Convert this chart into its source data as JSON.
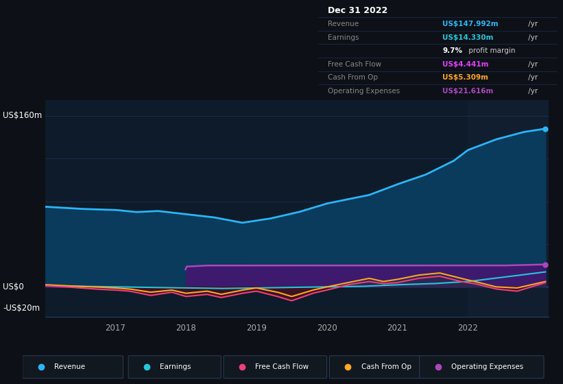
{
  "bg_color": "#0d1117",
  "plot_bg_color": "#0d1b2a",
  "highlight_bg_color": "#111e30",
  "grid_color": "#1e3050",
  "title": "Dec 31 2022",
  "table_rows": [
    {
      "label": "",
      "value": "Dec 31 2022",
      "value_color": "#ffffff",
      "is_header": true
    },
    {
      "label": "Revenue",
      "value": "US$147.992m",
      "unit": "/yr",
      "value_color": "#00bfff"
    },
    {
      "label": "Earnings",
      "value": "US$14.330m",
      "unit": "/yr",
      "value_color": "#00e5cc"
    },
    {
      "label": "",
      "value": "9.7%",
      "unit": " profit margin",
      "value_color": "#ffffff",
      "is_margin": true
    },
    {
      "label": "Free Cash Flow",
      "value": "US$4.441m",
      "unit": "/yr",
      "value_color": "#e040fb"
    },
    {
      "label": "Cash From Op",
      "value": "US$5.309m",
      "unit": "/yr",
      "value_color": "#ffa726"
    },
    {
      "label": "Operating Expenses",
      "value": "US$21.616m",
      "unit": "/yr",
      "value_color": "#ab47bc"
    }
  ],
  "y_label_top": "US$160m",
  "y_label_zero": "US$0",
  "y_label_bottom": "-US$20m",
  "x_ticks": [
    "2017",
    "2018",
    "2019",
    "2020",
    "2021",
    "2022"
  ],
  "revenue_color": "#29b6f6",
  "revenue_fill": "#0a3a5c",
  "earnings_color": "#26c6da",
  "fcf_color": "#ec407a",
  "fcf_fill_neg": "#4a1020",
  "cashfromop_color": "#ffa726",
  "opex_color": "#ab47bc",
  "opex_fill": "#3d1a6e",
  "legend_items": [
    "Revenue",
    "Earnings",
    "Free Cash Flow",
    "Cash From Op",
    "Operating Expenses"
  ],
  "legend_colors": [
    "#29b6f6",
    "#26c6da",
    "#ec407a",
    "#ffa726",
    "#ab47bc"
  ]
}
